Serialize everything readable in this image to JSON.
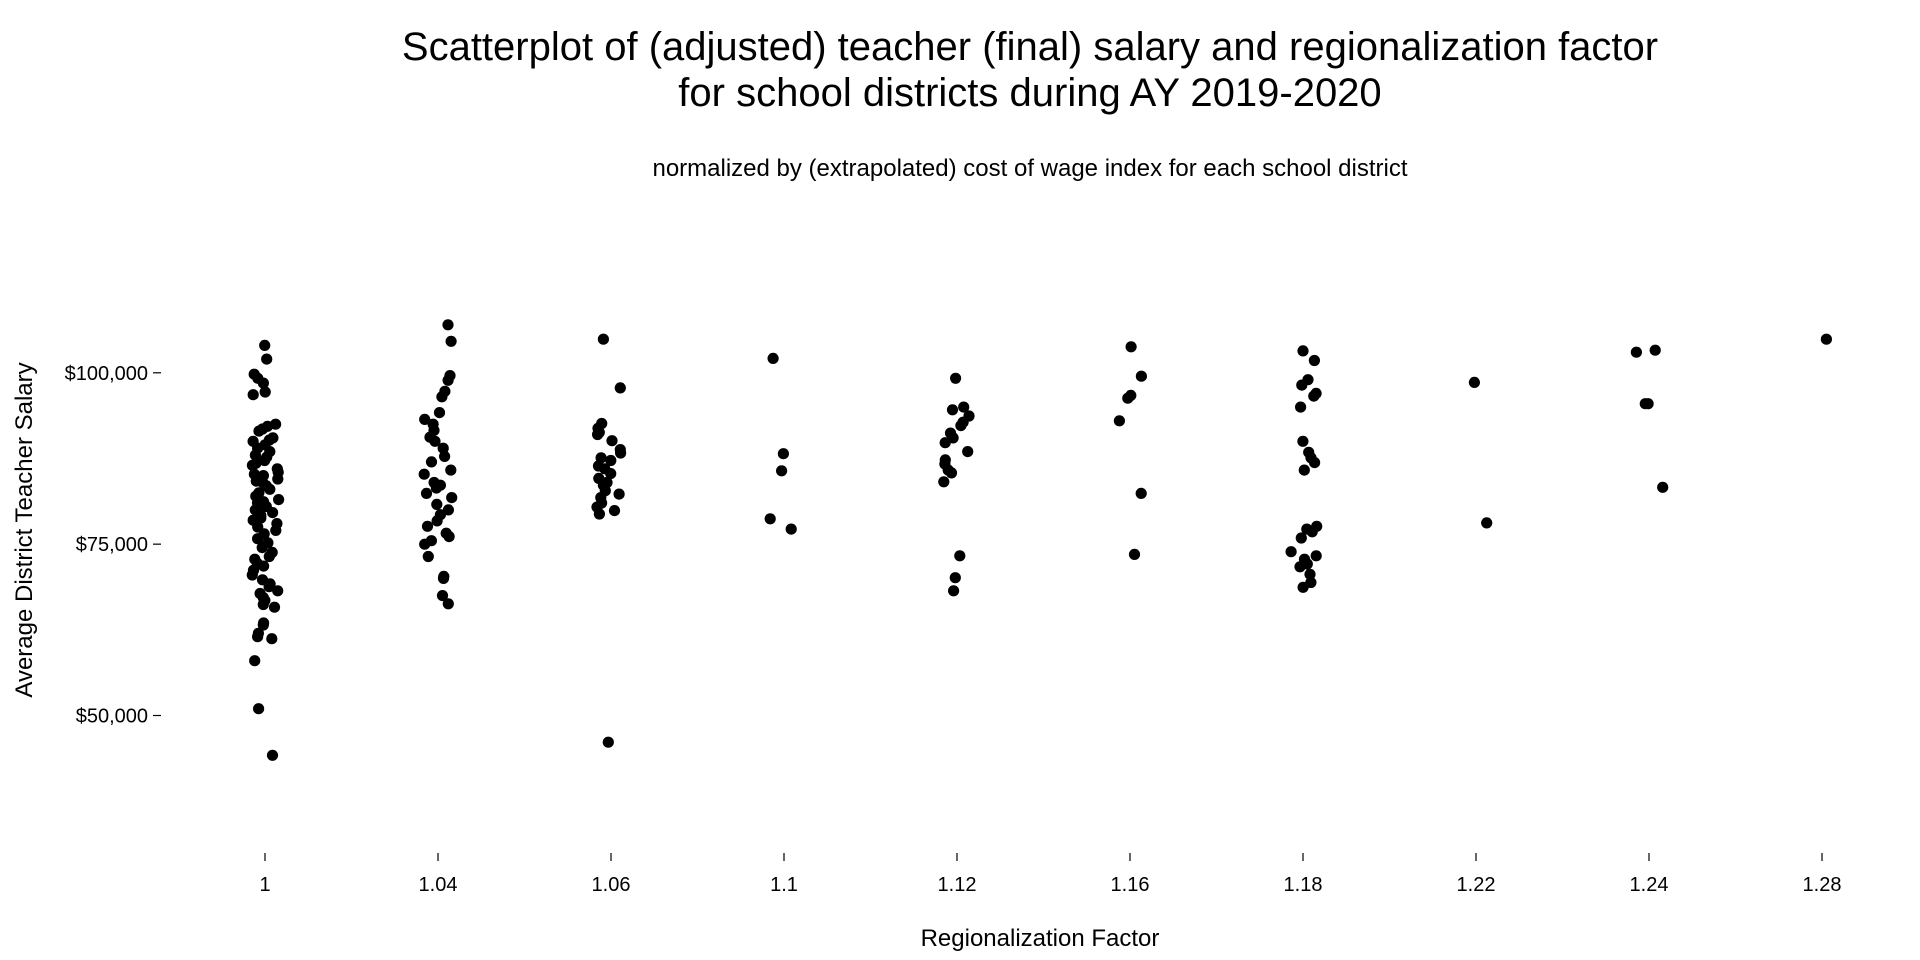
{
  "chart_data": {
    "type": "scatter",
    "title_lines": [
      "Scatterplot of (adjusted) teacher (final) salary and regionalization factor",
      "for school districts during AY 2019-2020"
    ],
    "subtitle": "normalized by (extrapolated) cost of wage index for each school district",
    "xlabel": "Regionalization Factor",
    "ylabel": "Average District Teacher Salary",
    "x_categories": [
      "1",
      "1.04",
      "1.06",
      "1.1",
      "1.12",
      "1.16",
      "1.18",
      "1.22",
      "1.24",
      "1.28"
    ],
    "y_ticks": [
      {
        "value": 50000,
        "label": "$50,000"
      },
      {
        "value": 75000,
        "label": "$75,000"
      },
      {
        "value": 100000,
        "label": "$100,000"
      }
    ],
    "ylim": [
      26000,
      115000
    ],
    "grid": false,
    "jitter": true,
    "points_by_category": [
      {
        "category": "1",
        "values": [
          104000,
          102000,
          99800,
          99200,
          98500,
          97200,
          96800,
          92500,
          92200,
          91800,
          91500,
          90500,
          90200,
          90000,
          89500,
          89000,
          88500,
          88000,
          87700,
          87200,
          86800,
          86500,
          86000,
          85500,
          85200,
          85000,
          84500,
          84200,
          84000,
          83500,
          83000,
          82500,
          82000,
          81500,
          81200,
          81000,
          80500,
          80200,
          80000,
          79600,
          79200,
          78800,
          78500,
          78000,
          77500,
          77000,
          76500,
          75800,
          75200,
          74500,
          73800,
          73200,
          72800,
          72200,
          71800,
          71200,
          70500,
          69800,
          69200,
          68800,
          68200,
          67800,
          67200,
          66800,
          66200,
          65800,
          63500,
          63200,
          62000,
          61500,
          61200,
          58000,
          51000,
          44200
        ]
      },
      {
        "category": "1.04",
        "values": [
          107000,
          104600,
          99600,
          98900,
          97300,
          96500,
          94200,
          93200,
          92500,
          91600,
          90600,
          90000,
          89000,
          87800,
          87000,
          85800,
          85200,
          84000,
          83600,
          83200,
          82400,
          81800,
          80800,
          80000,
          79300,
          78400,
          77600,
          76600,
          76100,
          75500,
          75000,
          73200,
          70300,
          70000,
          67500,
          66300
        ]
      },
      {
        "category": "1.06",
        "values": [
          104900,
          97800,
          92600,
          91900,
          91300,
          91000,
          90100,
          88800,
          88300,
          87600,
          87200,
          86400,
          86000,
          85300,
          84600,
          84000,
          83600,
          82800,
          82300,
          81800,
          81000,
          80400,
          79900,
          79400,
          46100
        ]
      },
      {
        "category": "1.1",
        "values": [
          102100,
          88200,
          85700,
          78700,
          77200
        ]
      },
      {
        "category": "1.12",
        "values": [
          99200,
          95000,
          94600,
          93700,
          92800,
          92300,
          91200,
          90500,
          89800,
          88500,
          87300,
          86700,
          85800,
          85400,
          84100,
          73300,
          70100,
          68200
        ]
      },
      {
        "category": "1.16",
        "values": [
          103800,
          99500,
          96700,
          96300,
          93000,
          82400,
          73500
        ]
      },
      {
        "category": "1.18",
        "values": [
          103200,
          101800,
          99000,
          98200,
          97000,
          96600,
          95000,
          90000,
          88400,
          87600,
          86900,
          85800,
          77600,
          77200,
          76800,
          75900,
          73900,
          73300,
          72800,
          72100,
          71700,
          70600,
          69400,
          68700
        ]
      },
      {
        "category": "1.22",
        "values": [
          98600,
          78100
        ]
      },
      {
        "category": "1.24",
        "values": [
          103300,
          103000,
          95500,
          95500,
          83300
        ]
      },
      {
        "category": "1.28",
        "values": [
          104900
        ]
      }
    ]
  }
}
